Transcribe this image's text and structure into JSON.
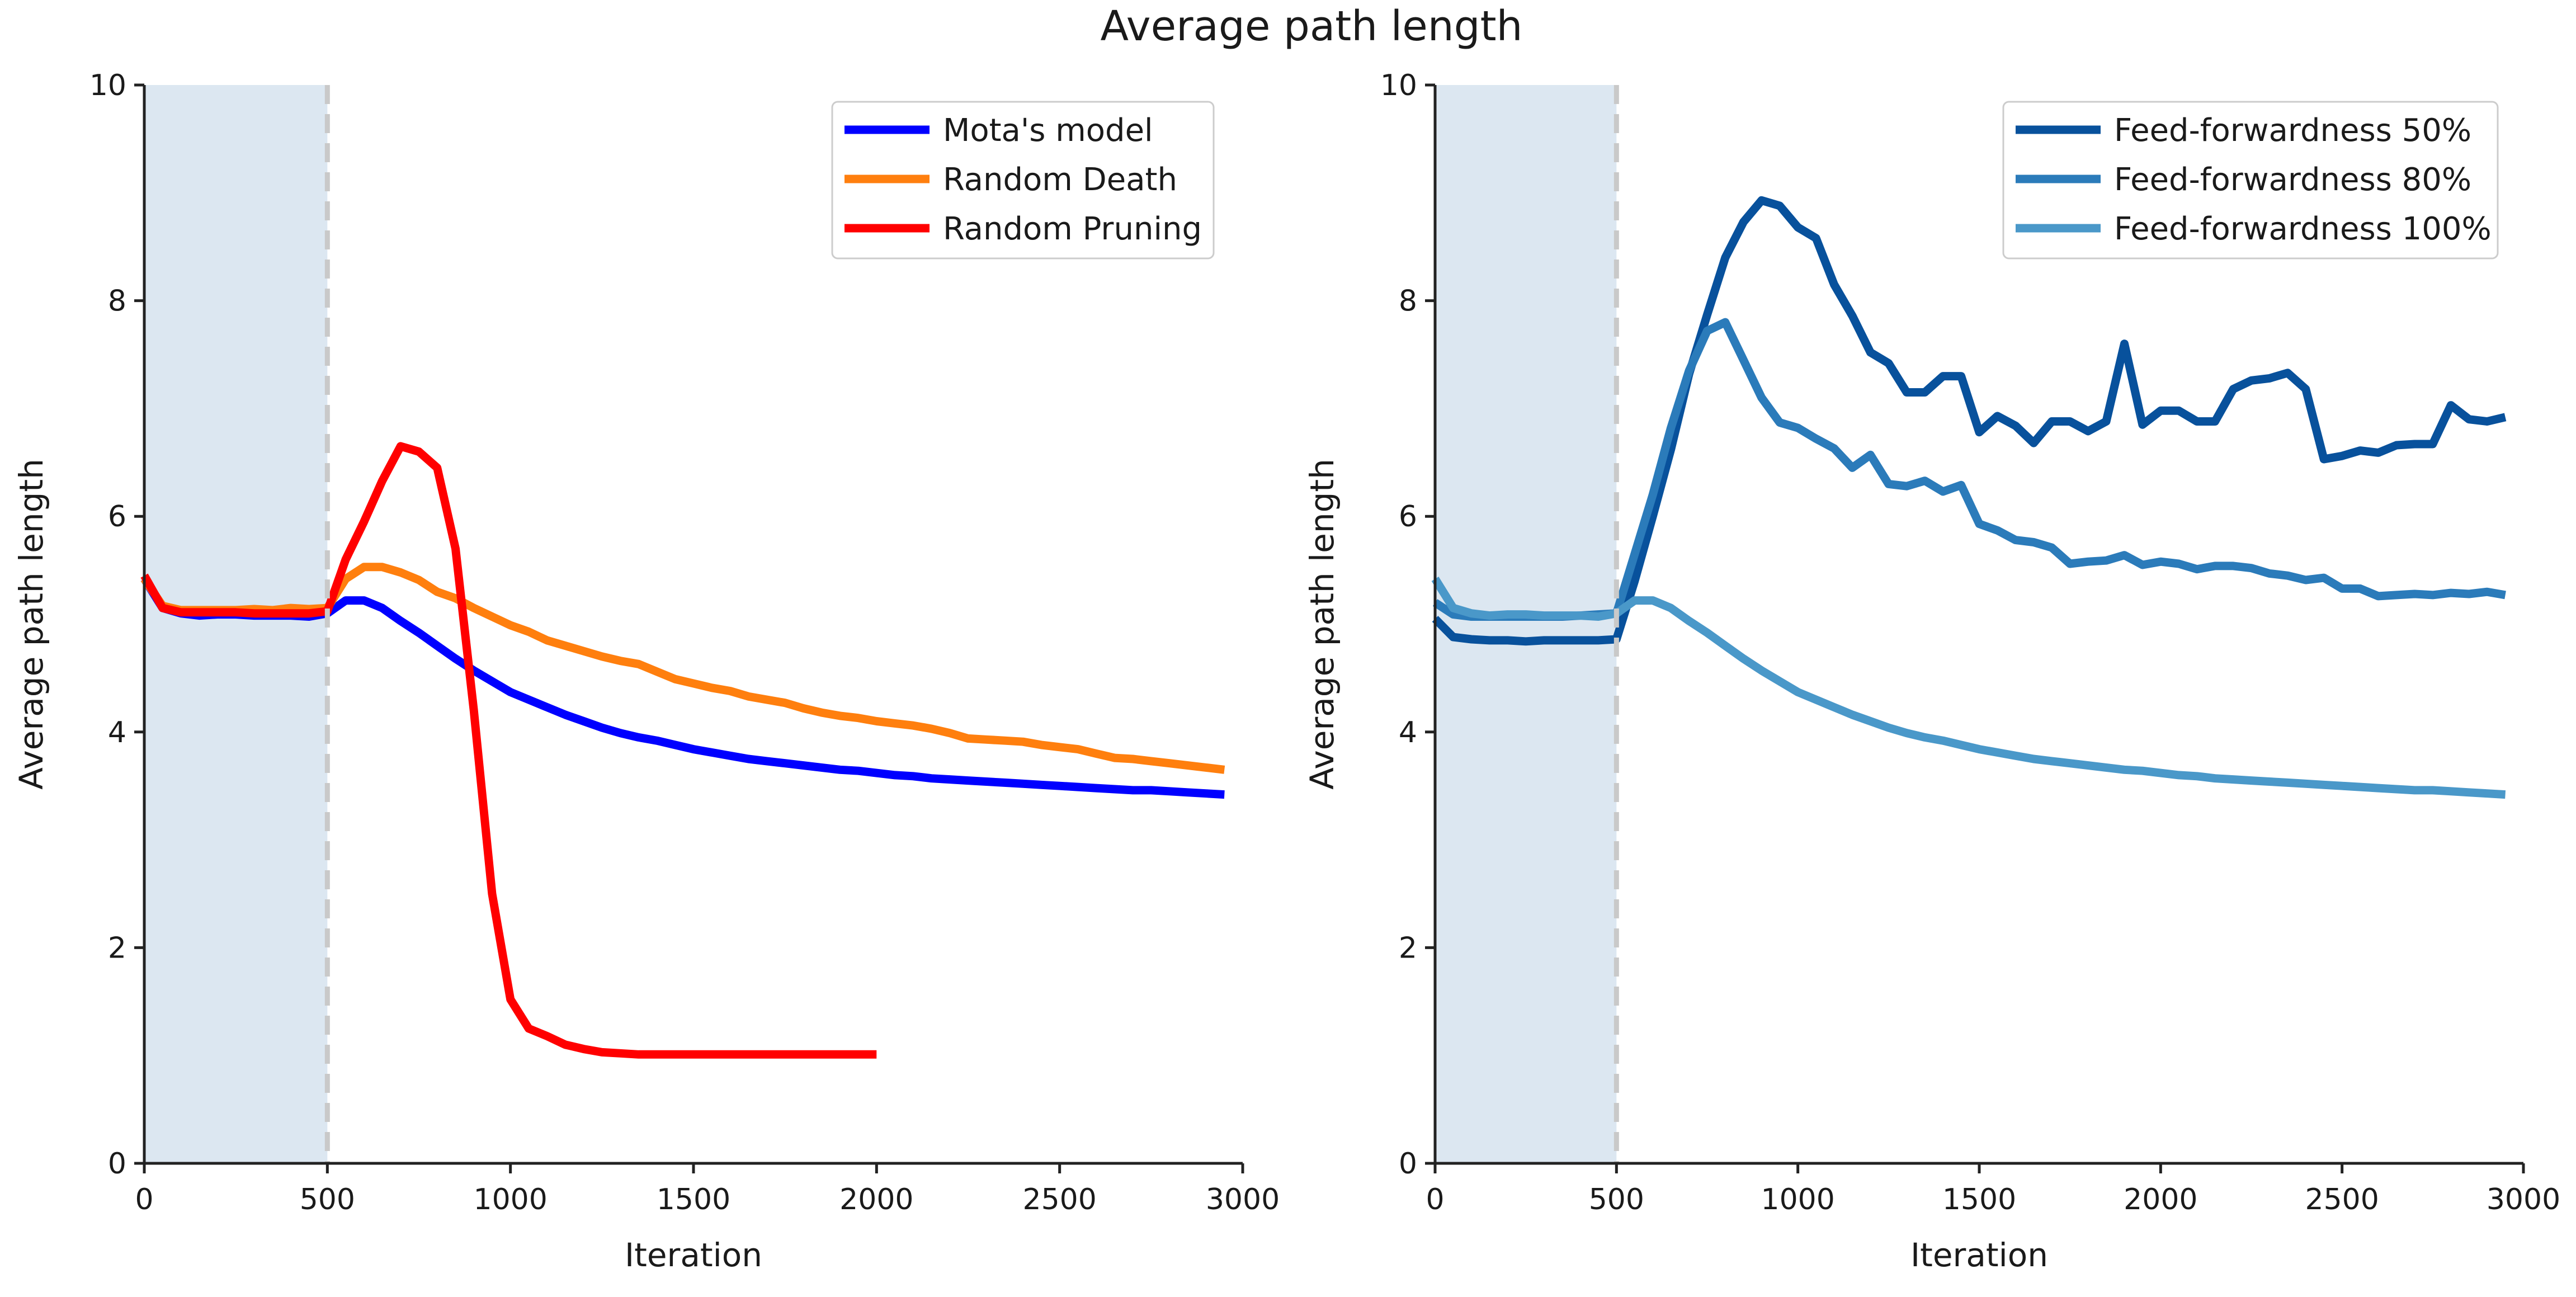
{
  "figure_title": "Average path length",
  "chart_data": [
    {
      "type": "line",
      "xlabel": "Iteration",
      "ylabel": "Average path length",
      "xlim": [
        0,
        3000
      ],
      "ylim": [
        0,
        10
      ],
      "xticks": [
        0,
        500,
        1000,
        1500,
        2000,
        2500,
        3000
      ],
      "yticks": [
        0,
        2,
        4,
        6,
        8,
        10
      ],
      "warmup_until": 500,
      "legend_position": "top-right",
      "series": [
        {
          "name": "Mota's model",
          "color": "#0000ff",
          "x": [
            0,
            50,
            100,
            150,
            200,
            250,
            300,
            350,
            400,
            450,
            500,
            550,
            600,
            650,
            700,
            750,
            800,
            850,
            900,
            950,
            1000,
            1050,
            1100,
            1150,
            1200,
            1250,
            1300,
            1350,
            1400,
            1450,
            1500,
            1550,
            1600,
            1650,
            1700,
            1750,
            1800,
            1850,
            1900,
            1950,
            2000,
            2050,
            2100,
            2150,
            2200,
            2250,
            2300,
            2350,
            2400,
            2450,
            2500,
            2550,
            2600,
            2650,
            2700,
            2750,
            2800,
            2850,
            2900,
            2950
          ],
          "y": [
            5.42,
            5.15,
            5.1,
            5.08,
            5.09,
            5.09,
            5.08,
            5.08,
            5.08,
            5.07,
            5.1,
            5.22,
            5.22,
            5.15,
            5.03,
            4.92,
            4.8,
            4.68,
            4.57,
            4.47,
            4.37,
            4.3,
            4.23,
            4.16,
            4.1,
            4.04,
            3.99,
            3.95,
            3.92,
            3.88,
            3.84,
            3.81,
            3.78,
            3.75,
            3.73,
            3.71,
            3.69,
            3.67,
            3.65,
            3.64,
            3.62,
            3.6,
            3.59,
            3.57,
            3.56,
            3.55,
            3.54,
            3.53,
            3.52,
            3.51,
            3.5,
            3.49,
            3.48,
            3.47,
            3.46,
            3.46,
            3.45,
            3.44,
            3.43,
            3.42
          ]
        },
        {
          "name": "Random Death",
          "color": "#ff7f0e",
          "x": [
            0,
            50,
            100,
            150,
            200,
            250,
            300,
            350,
            400,
            450,
            500,
            550,
            600,
            650,
            700,
            750,
            800,
            850,
            900,
            950,
            1000,
            1050,
            1100,
            1150,
            1200,
            1250,
            1300,
            1350,
            1400,
            1450,
            1500,
            1550,
            1600,
            1650,
            1700,
            1750,
            1800,
            1850,
            1900,
            1950,
            2000,
            2050,
            2100,
            2150,
            2200,
            2250,
            2300,
            2350,
            2400,
            2450,
            2500,
            2550,
            2600,
            2650,
            2700,
            2750,
            2800,
            2850,
            2900,
            2950
          ],
          "y": [
            5.42,
            5.17,
            5.13,
            5.13,
            5.13,
            5.13,
            5.14,
            5.13,
            5.15,
            5.14,
            5.15,
            5.42,
            5.53,
            5.53,
            5.48,
            5.41,
            5.3,
            5.24,
            5.15,
            5.07,
            4.99,
            4.93,
            4.85,
            4.8,
            4.75,
            4.7,
            4.66,
            4.63,
            4.56,
            4.49,
            4.45,
            4.41,
            4.38,
            4.33,
            4.3,
            4.27,
            4.22,
            4.18,
            4.15,
            4.13,
            4.1,
            4.08,
            4.06,
            4.03,
            3.99,
            3.94,
            3.93,
            3.92,
            3.91,
            3.88,
            3.86,
            3.84,
            3.8,
            3.76,
            3.75,
            3.73,
            3.71,
            3.69,
            3.67,
            3.65
          ]
        },
        {
          "name": "Random Pruning",
          "color": "#ff0000",
          "x": [
            0,
            50,
            100,
            150,
            200,
            250,
            300,
            350,
            400,
            450,
            500,
            550,
            600,
            650,
            700,
            750,
            800,
            850,
            900,
            950,
            1000,
            1050,
            1100,
            1150,
            1200,
            1250,
            1300,
            1350,
            1400,
            1450,
            1500,
            1550,
            1600,
            1650,
            1700,
            1750,
            1800,
            1850,
            1900,
            1950,
            2000
          ],
          "y": [
            5.45,
            5.15,
            5.11,
            5.11,
            5.11,
            5.11,
            5.1,
            5.1,
            5.1,
            5.1,
            5.12,
            5.6,
            5.95,
            6.33,
            6.65,
            6.6,
            6.45,
            5.7,
            4.2,
            2.5,
            1.52,
            1.25,
            1.18,
            1.1,
            1.06,
            1.03,
            1.02,
            1.01,
            1.01,
            1.01,
            1.01,
            1.01,
            1.01,
            1.01,
            1.01,
            1.01,
            1.01,
            1.01,
            1.01,
            1.01,
            1.01
          ]
        }
      ]
    },
    {
      "type": "line",
      "xlabel": "Iteration",
      "ylabel": "Average path length",
      "xlim": [
        0,
        3000
      ],
      "ylim": [
        0,
        10
      ],
      "xticks": [
        0,
        500,
        1000,
        1500,
        2000,
        2500,
        3000
      ],
      "yticks": [
        0,
        2,
        4,
        6,
        8,
        10
      ],
      "warmup_until": 500,
      "legend_position": "top-right",
      "series": [
        {
          "name": "Feed-forwardness 50%",
          "color": "#08519c",
          "x": [
            0,
            50,
            100,
            150,
            200,
            250,
            300,
            350,
            400,
            450,
            500,
            550,
            600,
            650,
            700,
            750,
            800,
            850,
            900,
            950,
            1000,
            1050,
            1100,
            1150,
            1200,
            1250,
            1300,
            1350,
            1400,
            1450,
            1500,
            1550,
            1600,
            1650,
            1700,
            1750,
            1800,
            1850,
            1900,
            1950,
            2000,
            2050,
            2100,
            2150,
            2200,
            2250,
            2300,
            2350,
            2400,
            2450,
            2500,
            2550,
            2600,
            2650,
            2700,
            2750,
            2800,
            2850,
            2900,
            2950
          ],
          "y": [
            5.05,
            4.88,
            4.86,
            4.85,
            4.85,
            4.84,
            4.85,
            4.85,
            4.85,
            4.85,
            4.86,
            5.4,
            6.0,
            6.62,
            7.32,
            7.87,
            8.4,
            8.73,
            8.93,
            8.88,
            8.68,
            8.58,
            8.15,
            7.86,
            7.52,
            7.42,
            7.15,
            7.15,
            7.3,
            7.3,
            6.78,
            6.93,
            6.84,
            6.68,
            6.88,
            6.88,
            6.79,
            6.88,
            7.6,
            6.85,
            6.98,
            6.98,
            6.88,
            6.88,
            7.18,
            7.26,
            7.28,
            7.33,
            7.18,
            6.53,
            6.56,
            6.61,
            6.59,
            6.66,
            6.67,
            6.67,
            7.03,
            6.9,
            6.88,
            6.92
          ]
        },
        {
          "name": "Feed-forwardness 80%",
          "color": "#2b7bba",
          "x": [
            0,
            50,
            100,
            150,
            200,
            250,
            300,
            350,
            400,
            450,
            500,
            550,
            600,
            650,
            700,
            750,
            800,
            850,
            900,
            950,
            1000,
            1050,
            1100,
            1150,
            1200,
            1250,
            1300,
            1350,
            1400,
            1450,
            1500,
            1550,
            1600,
            1650,
            1700,
            1750,
            1800,
            1850,
            1900,
            1950,
            2000,
            2050,
            2100,
            2150,
            2200,
            2250,
            2300,
            2350,
            2400,
            2450,
            2500,
            2550,
            2600,
            2650,
            2700,
            2750,
            2800,
            2850,
            2900,
            2950
          ],
          "y": [
            5.2,
            5.09,
            5.07,
            5.07,
            5.07,
            5.07,
            5.07,
            5.07,
            5.08,
            5.09,
            5.1,
            5.65,
            6.2,
            6.82,
            7.35,
            7.72,
            7.8,
            7.45,
            7.1,
            6.87,
            6.82,
            6.72,
            6.63,
            6.45,
            6.57,
            6.3,
            6.28,
            6.33,
            6.23,
            6.29,
            5.93,
            5.87,
            5.78,
            5.76,
            5.71,
            5.56,
            5.58,
            5.59,
            5.64,
            5.55,
            5.58,
            5.56,
            5.51,
            5.54,
            5.54,
            5.52,
            5.47,
            5.45,
            5.41,
            5.43,
            5.33,
            5.33,
            5.26,
            5.27,
            5.28,
            5.27,
            5.29,
            5.28,
            5.3,
            5.27
          ]
        },
        {
          "name": "Feed-forwardness 100%",
          "color": "#4a98c9",
          "x": [
            0,
            50,
            100,
            150,
            200,
            250,
            300,
            350,
            400,
            450,
            500,
            550,
            600,
            650,
            700,
            750,
            800,
            850,
            900,
            950,
            1000,
            1050,
            1100,
            1150,
            1200,
            1250,
            1300,
            1350,
            1400,
            1450,
            1500,
            1550,
            1600,
            1650,
            1700,
            1750,
            1800,
            1850,
            1900,
            1950,
            2000,
            2050,
            2100,
            2150,
            2200,
            2250,
            2300,
            2350,
            2400,
            2450,
            2500,
            2550,
            2600,
            2650,
            2700,
            2750,
            2800,
            2850,
            2900,
            2950
          ],
          "y": [
            5.42,
            5.15,
            5.1,
            5.08,
            5.09,
            5.09,
            5.08,
            5.08,
            5.08,
            5.07,
            5.1,
            5.22,
            5.22,
            5.15,
            5.03,
            4.92,
            4.8,
            4.68,
            4.57,
            4.47,
            4.37,
            4.3,
            4.23,
            4.16,
            4.1,
            4.04,
            3.99,
            3.95,
            3.92,
            3.88,
            3.84,
            3.81,
            3.78,
            3.75,
            3.73,
            3.71,
            3.69,
            3.67,
            3.65,
            3.64,
            3.62,
            3.6,
            3.59,
            3.57,
            3.56,
            3.55,
            3.54,
            3.53,
            3.52,
            3.51,
            3.5,
            3.49,
            3.48,
            3.47,
            3.46,
            3.46,
            3.45,
            3.44,
            3.43,
            3.42
          ]
        }
      ]
    }
  ]
}
